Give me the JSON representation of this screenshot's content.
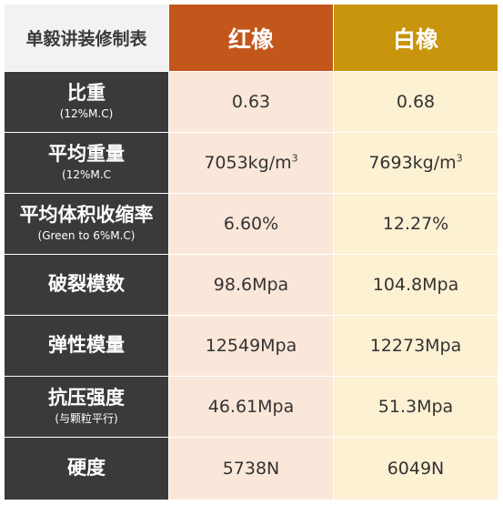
{
  "header": {
    "label": "单毅讲装修制表",
    "col_red": "红橡",
    "col_white": "白橡"
  },
  "colors": {
    "red_oak_header": "#c3561b",
    "white_oak_header": "#c8950d",
    "label_column": "#3a3a3a",
    "red_oak_cell": "#fbe7d9",
    "white_oak_cell": "#fdf1d3"
  },
  "rows": [
    {
      "label": "比重",
      "sub": "(12%M.C)",
      "red": "0.63",
      "white": "0.68"
    },
    {
      "label": "平均重量",
      "sub": "(12%M.C",
      "red": "7053kg/m",
      "red_sup": "3",
      "white": "7693kg/m",
      "white_sup": "3"
    },
    {
      "label": "平均体积收缩率",
      "sub": "(Green to 6%M.C)",
      "red": "6.60%",
      "white": "12.27%"
    },
    {
      "label": "破裂模数",
      "sub": "",
      "red": "98.6Mpa",
      "white": "104.8Mpa"
    },
    {
      "label": "弹性模量",
      "sub": "",
      "red": "12549Mpa",
      "white": "12273Mpa"
    },
    {
      "label": "抗压强度",
      "sub": "(与颗粒平行)",
      "red": "46.61Mpa",
      "white": "51.3Mpa"
    },
    {
      "label": "硬度",
      "sub": "",
      "red": "5738N",
      "white": "6049N"
    }
  ]
}
